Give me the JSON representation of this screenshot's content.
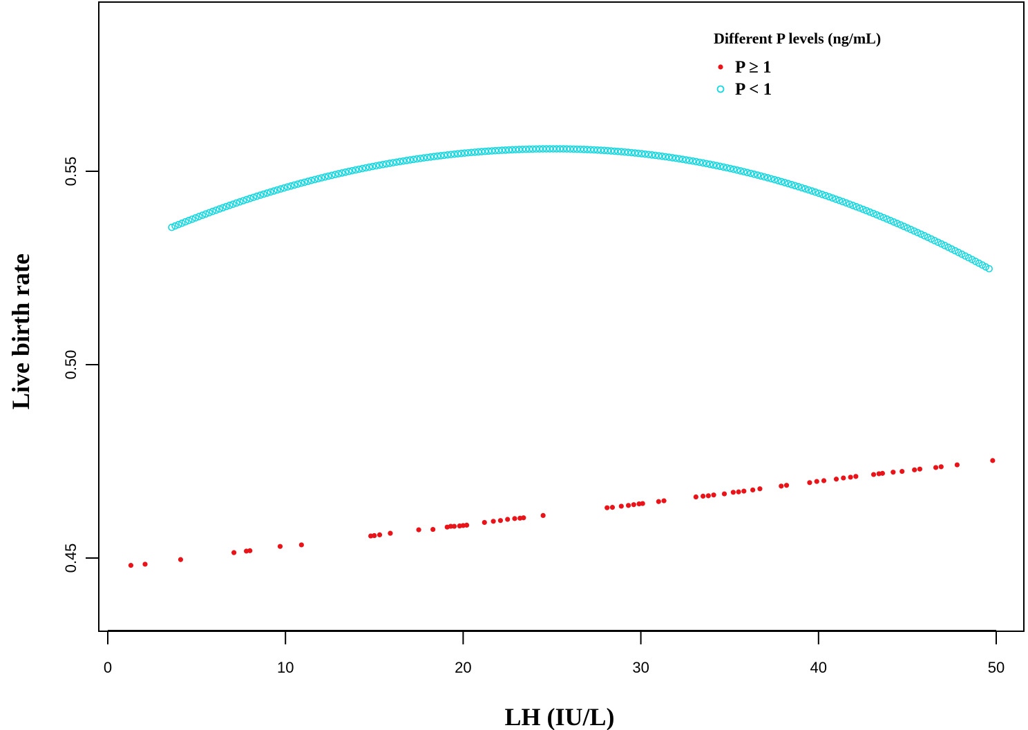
{
  "chart_data": {
    "type": "scatter",
    "title": "",
    "xlabel": "LH (IU/L)",
    "ylabel": "Live birth rate",
    "xlim": [
      0,
      50
    ],
    "ylim": [
      0.43,
      0.58
    ],
    "xticks": [
      "0",
      "10",
      "20",
      "30",
      "40",
      "50"
    ],
    "yticks": [
      "0.45",
      "0.50",
      "0.55"
    ],
    "grid": false,
    "legend_position": "top-right",
    "legend_title": "Different P levels (ng/mL)",
    "series": [
      {
        "name": "P ≥ 1",
        "marker": "filled-circle",
        "color": "#e8141a",
        "points": [
          [
            1.3,
            0.4481
          ],
          [
            2.1,
            0.4484
          ],
          [
            4.1,
            0.4496
          ],
          [
            7.1,
            0.4514
          ],
          [
            7.8,
            0.4518
          ],
          [
            8.0,
            0.4519
          ],
          [
            9.7,
            0.453
          ],
          [
            10.9,
            0.4534
          ],
          [
            14.8,
            0.4557
          ],
          [
            15.0,
            0.4558
          ],
          [
            15.3,
            0.456
          ],
          [
            15.9,
            0.4564
          ],
          [
            17.5,
            0.4573
          ],
          [
            18.3,
            0.4574
          ],
          [
            19.1,
            0.458
          ],
          [
            19.3,
            0.4582
          ],
          [
            19.5,
            0.4582
          ],
          [
            19.8,
            0.4583
          ],
          [
            20.0,
            0.4584
          ],
          [
            20.2,
            0.4585
          ],
          [
            21.2,
            0.4592
          ],
          [
            21.7,
            0.4595
          ],
          [
            22.1,
            0.4597
          ],
          [
            22.5,
            0.46
          ],
          [
            22.9,
            0.4602
          ],
          [
            23.2,
            0.4603
          ],
          [
            23.4,
            0.4604
          ],
          [
            24.5,
            0.461
          ],
          [
            28.1,
            0.463
          ],
          [
            28.4,
            0.4631
          ],
          [
            28.9,
            0.4634
          ],
          [
            29.3,
            0.4636
          ],
          [
            29.6,
            0.4638
          ],
          [
            29.9,
            0.464
          ],
          [
            30.1,
            0.4641
          ],
          [
            31.0,
            0.4646
          ],
          [
            31.3,
            0.4648
          ],
          [
            33.1,
            0.4658
          ],
          [
            33.5,
            0.466
          ],
          [
            33.8,
            0.4661
          ],
          [
            34.1,
            0.4663
          ],
          [
            34.7,
            0.4666
          ],
          [
            35.2,
            0.467
          ],
          [
            35.5,
            0.4671
          ],
          [
            35.8,
            0.4673
          ],
          [
            36.3,
            0.4676
          ],
          [
            36.7,
            0.4679
          ],
          [
            37.9,
            0.4686
          ],
          [
            38.2,
            0.4688
          ],
          [
            39.5,
            0.4695
          ],
          [
            39.9,
            0.4698
          ],
          [
            40.3,
            0.47
          ],
          [
            41.0,
            0.4704
          ],
          [
            41.4,
            0.4707
          ],
          [
            41.8,
            0.4709
          ],
          [
            42.1,
            0.4711
          ],
          [
            43.1,
            0.4716
          ],
          [
            43.4,
            0.4718
          ],
          [
            43.6,
            0.4719
          ],
          [
            44.2,
            0.4722
          ],
          [
            44.7,
            0.4724
          ],
          [
            45.4,
            0.4728
          ],
          [
            45.7,
            0.473
          ],
          [
            46.6,
            0.4734
          ],
          [
            46.9,
            0.4736
          ],
          [
            47.8,
            0.4741
          ],
          [
            49.8,
            0.4752
          ]
        ]
      },
      {
        "name": "P < 1",
        "marker": "open-circle",
        "color": "#17d7df",
        "curve": {
          "x_start": 3.6,
          "x_end": 49.6,
          "x_peak": 25.1,
          "y_peak": 0.5558,
          "y_at_start": 0.5355,
          "y_at_end": 0.5248
        }
      }
    ]
  }
}
